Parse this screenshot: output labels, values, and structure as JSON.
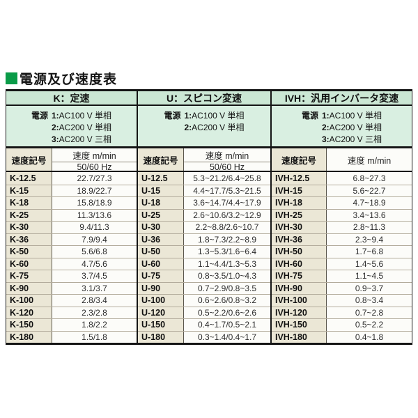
{
  "title": "電源及び速度表",
  "colors": {
    "accent_green": "#0a9b48",
    "section_header_band": "#cbe7d4",
    "power_band": "#d9efe1",
    "label_cell": "#ebe7d6",
    "value_cell": "#fcfcf9"
  },
  "table": {
    "sections": [
      {
        "id": "K",
        "header": "K：定速",
        "power_label": "電源",
        "power_options": [
          {
            "n": "1:",
            "v": "AC100 V 単相"
          },
          {
            "n": "2:",
            "v": "AC200 V 単相"
          },
          {
            "n": "3:",
            "v": "AC200 V 三相"
          }
        ],
        "symbol_header": "速度記号",
        "speed_header_lines": [
          {
            "text": "速度 m/min"
          },
          {
            "text": "50/60 Hz"
          }
        ],
        "rows": [
          {
            "code": "K-12.5",
            "speed": "22.7/27.3"
          },
          {
            "code": "K-15",
            "speed": "18.9/22.7"
          },
          {
            "code": "K-18",
            "speed": "15.8/18.9"
          },
          {
            "code": "K-25",
            "speed": "11.3/13.6"
          },
          {
            "code": "K-30",
            "speed": "9.4/11.3"
          },
          {
            "code": "K-36",
            "speed": "7.9/9.4"
          },
          {
            "code": "K-50",
            "speed": "5.6/6.8"
          },
          {
            "code": "K-60",
            "speed": "4.7/5.6"
          },
          {
            "code": "K-75",
            "speed": "3.7/4.5"
          },
          {
            "code": "K-90",
            "speed": "3.1/3.7"
          },
          {
            "code": "K-100",
            "speed": "2.8/3.4"
          },
          {
            "code": "K-120",
            "speed": "2.3/2.8"
          },
          {
            "code": "K-150",
            "speed": "1.8/2.2"
          },
          {
            "code": "K-180",
            "speed": "1.5/1.8"
          }
        ]
      },
      {
        "id": "U",
        "header": "U：スピコン変速",
        "power_label": "電源",
        "power_options": [
          {
            "n": "1:",
            "v": "AC100 V 単相"
          },
          {
            "n": "2:",
            "v": "AC200 V 単相"
          }
        ],
        "symbol_header": "速度記号",
        "speed_header_lines": [
          {
            "text": "速度 m/min"
          },
          {
            "text": "50/60 Hz"
          }
        ],
        "rows": [
          {
            "code": "U-12.5",
            "speed": "5.3~21.2/6.4~25.8"
          },
          {
            "code": "U-15",
            "speed": "4.4~17.7/5.3~21.5"
          },
          {
            "code": "U-18",
            "speed": "3.6~14.7/4.4~17.9"
          },
          {
            "code": "U-25",
            "speed": "2.6~10.6/3.2~12.9"
          },
          {
            "code": "U-30",
            "speed": "2.2~8.8/2.6~10.7"
          },
          {
            "code": "U-36",
            "speed": "1.8~7.3/2.2~8.9"
          },
          {
            "code": "U-50",
            "speed": "1.3~5.3/1.6~6.4"
          },
          {
            "code": "U-60",
            "speed": "1.1~4.4/1.3~5.3"
          },
          {
            "code": "U-75",
            "speed": "0.8~3.5/1.0~4.3"
          },
          {
            "code": "U-90",
            "speed": "0.7~2.9/0.8~3.5"
          },
          {
            "code": "U-100",
            "speed": "0.6~2.6/0.8~3.2"
          },
          {
            "code": "U-120",
            "speed": "0.5~2.2/0.6~2.6"
          },
          {
            "code": "U-150",
            "speed": "0.4~1.7/0.5~2.1"
          },
          {
            "code": "U-180",
            "speed": "0.3~1.4/0.4~1.7"
          }
        ]
      },
      {
        "id": "IVH",
        "header": "IVH：汎用インバータ変速",
        "power_label": "電源",
        "power_options": [
          {
            "n": "1:",
            "v": "AC100 V 単相"
          },
          {
            "n": "2:",
            "v": "AC200 V 単相"
          },
          {
            "n": "3:",
            "v": "AC200 V 三相"
          }
        ],
        "symbol_header": "速度記号",
        "speed_header_lines": [
          {
            "text": "速度 m/min"
          }
        ],
        "rows": [
          {
            "code": "IVH-12.5",
            "speed": "6.8~27.3"
          },
          {
            "code": "IVH-15",
            "speed": "5.6~22.7"
          },
          {
            "code": "IVH-18",
            "speed": "4.7~18.9"
          },
          {
            "code": "IVH-25",
            "speed": "3.4~13.6"
          },
          {
            "code": "IVH-30",
            "speed": "2.8~11.3"
          },
          {
            "code": "IVH-36",
            "speed": "2.3~9.4"
          },
          {
            "code": "IVH-50",
            "speed": "1.7~6.8"
          },
          {
            "code": "IVH-60",
            "speed": "1.4~5.6"
          },
          {
            "code": "IVH-75",
            "speed": "1.1~4.5"
          },
          {
            "code": "IVH-90",
            "speed": "0.9~3.7"
          },
          {
            "code": "IVH-100",
            "speed": "0.8~3.4"
          },
          {
            "code": "IVH-120",
            "speed": "0.7~2.8"
          },
          {
            "code": "IVH-150",
            "speed": "0.5~2.2"
          },
          {
            "code": "IVH-180",
            "speed": "0.4~1.8"
          }
        ]
      }
    ]
  }
}
